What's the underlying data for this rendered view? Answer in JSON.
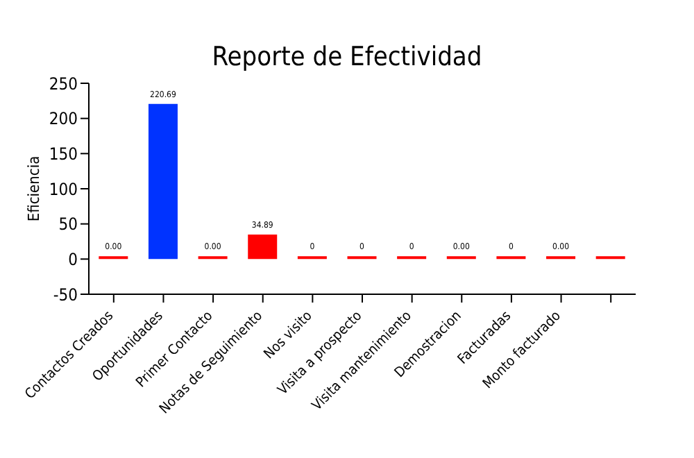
{
  "chart_data": {
    "type": "bar",
    "title": "Reporte de Efectividad",
    "ylabel": "Eficiencia",
    "categories": [
      "Contactos Creados",
      "Oportunidades",
      "Primer Contacto",
      "Notas de Seguimiento",
      "Nos visito",
      "Visita a prospecto",
      "Visita mantenimiento",
      "Demostracion",
      "Facturadas",
      "Monto facturado",
      null
    ],
    "values": [
      0,
      220.69,
      0,
      34.89,
      0,
      0,
      0,
      0,
      0,
      0,
      0
    ],
    "colors": [
      "#ff0000",
      "#0033ff",
      "#ff0000",
      "#ff0000",
      "#ff0000",
      "#ff0000",
      "#ff0000",
      "#ff0000",
      "#ff0000",
      "#ff0000",
      "#ff0000"
    ],
    "value_labels": [
      "0.00",
      "220.69",
      "0.00",
      "34.89",
      "0",
      "0",
      "0",
      "0.00",
      "0",
      "0.00",
      null
    ],
    "ylim": [
      -50,
      250
    ],
    "yticks": [
      -50,
      0,
      50,
      100,
      150,
      200,
      250
    ],
    "grid": false
  }
}
